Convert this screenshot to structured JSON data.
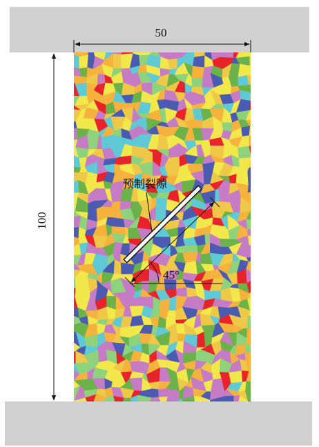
{
  "dimensions": {
    "width": "50",
    "height": "100"
  },
  "crack_label": "预制裂隙",
  "angle_label": "45°"
}
